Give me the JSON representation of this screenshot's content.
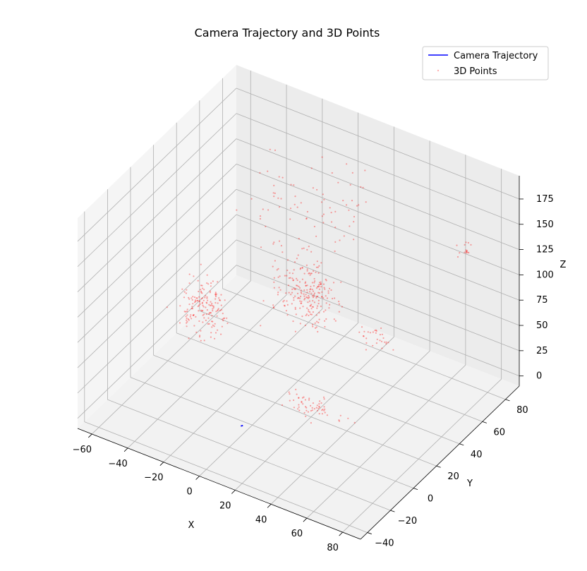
{
  "chart_data": {
    "type": "scatter",
    "projection": "3d",
    "title": "Camera Trajectory and 3D Points",
    "xlabel": "X",
    "ylabel": "Y",
    "zlabel": "Z",
    "x_ticks": [
      "−60",
      "−40",
      "−20",
      "0",
      "20",
      "40",
      "60",
      "80"
    ],
    "y_ticks": [
      "−40",
      "−20",
      "0",
      "20",
      "40",
      "60",
      "80"
    ],
    "z_ticks": [
      "0",
      "25",
      "50",
      "75",
      "100",
      "125",
      "150",
      "175"
    ],
    "xlim": [
      -68,
      90
    ],
    "ylim": [
      -46,
      92
    ],
    "zlim": [
      -10,
      198
    ],
    "grid": true,
    "legend": "top-right",
    "series": [
      {
        "name": "Camera Trajectory",
        "kind": "line",
        "color": "#0000ff",
        "points": [
          [
            0,
            -10,
            0
          ],
          [
            0.4,
            -9.7,
            0.2
          ],
          [
            0.8,
            -9.4,
            0.4
          ]
        ]
      },
      {
        "name": "3D Points",
        "kind": "scatter",
        "color": "#ff0000",
        "clusters": [
          {
            "center": [
              -40,
              20,
              55
            ],
            "spread": [
              10,
              8,
              22
            ],
            "count": 170
          },
          {
            "center": [
              -5,
              55,
              60
            ],
            "spread": [
              14,
              10,
              25
            ],
            "count": 230
          },
          {
            "center": [
              25,
              10,
              15
            ],
            "spread": [
              14,
              6,
              8
            ],
            "count": 60
          },
          {
            "center": [
              35,
              55,
              40
            ],
            "spread": [
              8,
              5,
              8
            ],
            "count": 30
          },
          {
            "center": [
              5,
              45,
              160
            ],
            "spread": [
              30,
              25,
              25
            ],
            "count": 80
          },
          {
            "center": [
              70,
              75,
              130
            ],
            "spread": [
              4,
              4,
              6
            ],
            "count": 15
          }
        ]
      }
    ]
  }
}
